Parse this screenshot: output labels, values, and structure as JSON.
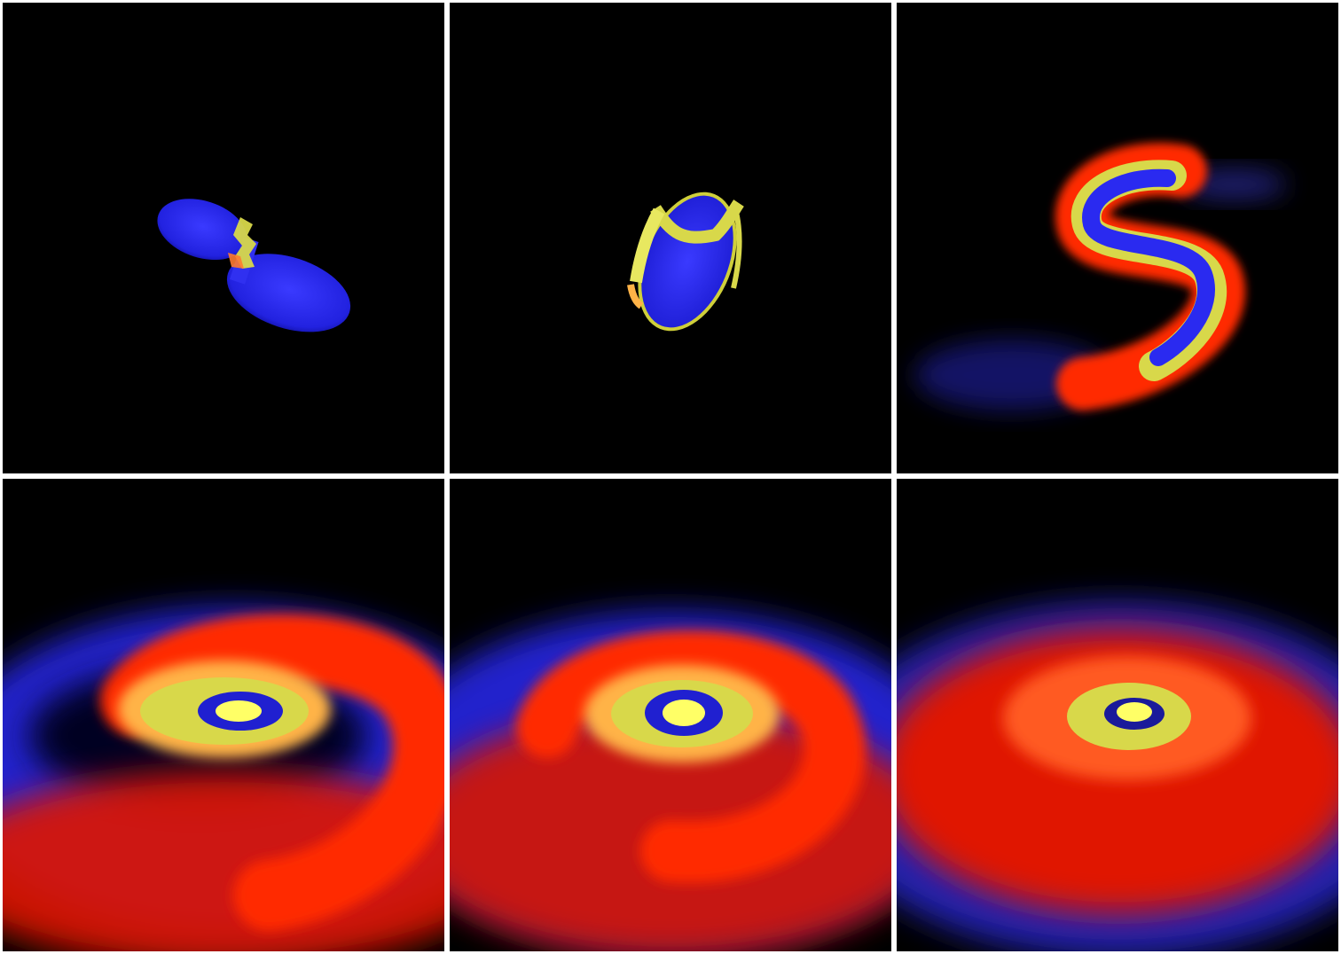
{
  "figure": {
    "background": "#ffffff",
    "panel_background": "#000000",
    "palette": {
      "cold": "#1a1aff",
      "warm": "#ff2a00",
      "hot": "#ffb347",
      "hottest": "#ffff66",
      "deep": "#000033"
    },
    "panels": [
      {
        "stage": 1,
        "scene": "contact-binary"
      },
      {
        "stage": 2,
        "scene": "merging-binary"
      },
      {
        "stage": 3,
        "scene": "s-shaped-merger"
      },
      {
        "stage": 4,
        "scene": "spiral-disk-early"
      },
      {
        "stage": 5,
        "scene": "spiral-disk-mid"
      },
      {
        "stage": 6,
        "scene": "spiral-disk-late"
      }
    ]
  }
}
